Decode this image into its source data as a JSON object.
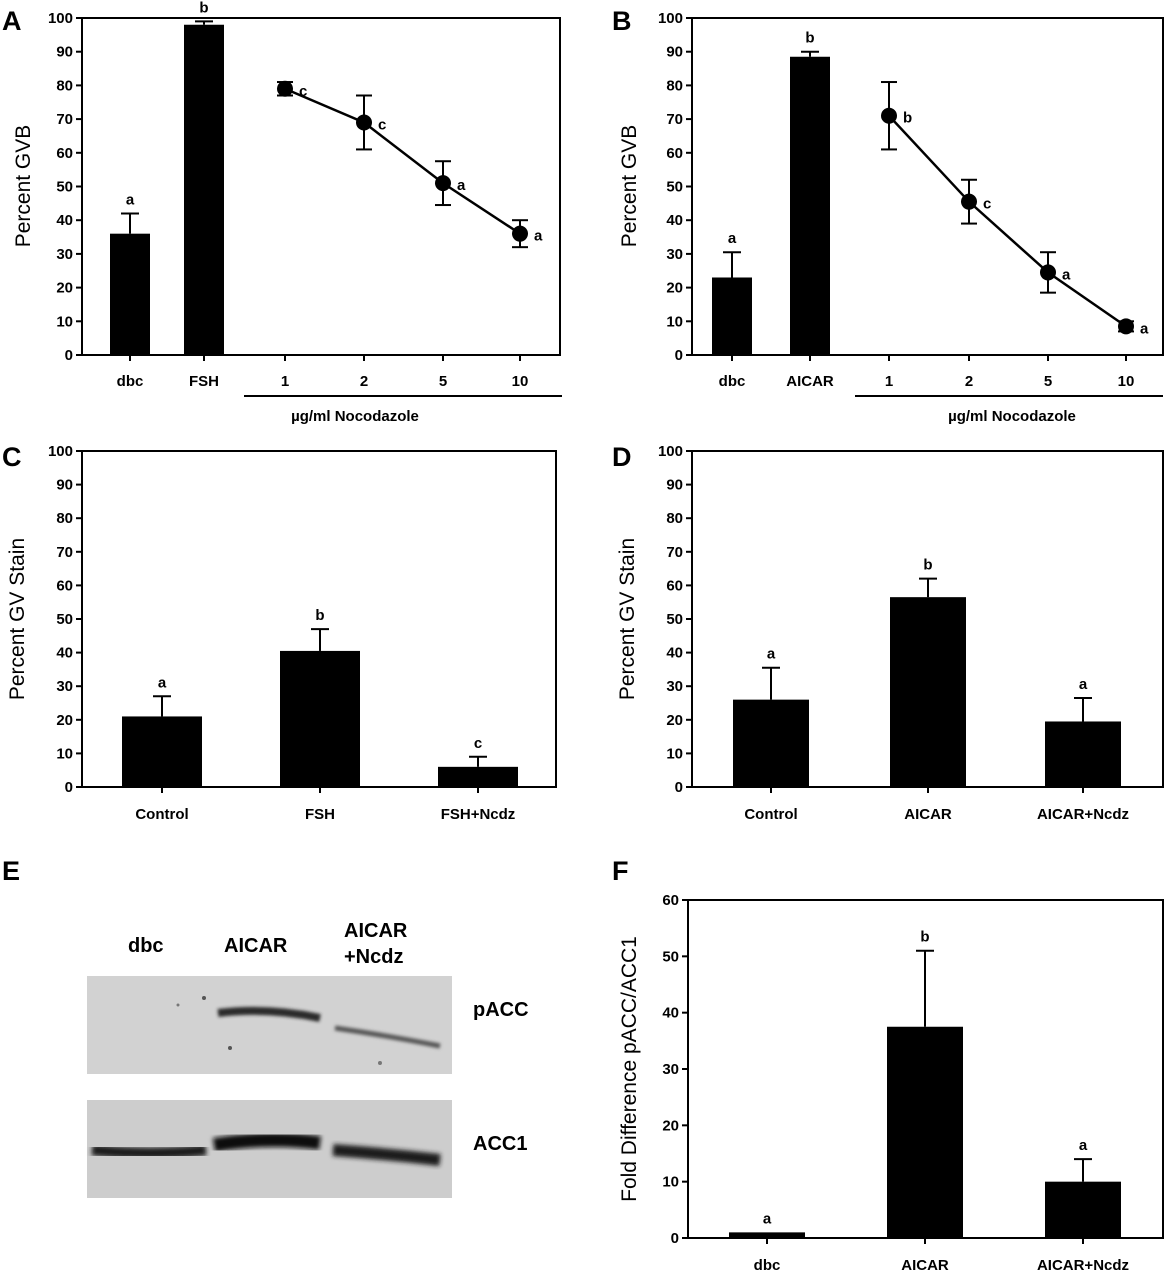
{
  "figure": {
    "panel_labels": [
      "A",
      "B",
      "C",
      "D",
      "E",
      "F"
    ]
  },
  "chart_data": [
    {
      "id": "A",
      "type": "bar",
      "ylabel": "Percent GVB",
      "ylim": [
        0,
        100
      ],
      "yticks": [
        0,
        10,
        20,
        30,
        40,
        50,
        60,
        70,
        80,
        90,
        100
      ],
      "categories": [
        "dbc",
        "FSH",
        "1",
        "2",
        "5",
        "10"
      ],
      "group_label": "µg/ml Nocodazole",
      "bars": [
        {
          "label": "dbc",
          "value": 36,
          "err": 6,
          "sig": "a"
        },
        {
          "label": "FSH",
          "value": 98,
          "err": 1,
          "sig": "b"
        }
      ],
      "line": [
        {
          "label": "1",
          "value": 79,
          "err": 2,
          "sig": "c"
        },
        {
          "label": "2",
          "value": 69,
          "err": 8,
          "sig": "c"
        },
        {
          "label": "5",
          "value": 51,
          "err": 6.5,
          "sig": "a"
        },
        {
          "label": "10",
          "value": 36,
          "err": 4,
          "sig": "a"
        }
      ]
    },
    {
      "id": "B",
      "type": "bar",
      "ylabel": "Percent GVB",
      "ylim": [
        0,
        100
      ],
      "yticks": [
        0,
        10,
        20,
        30,
        40,
        50,
        60,
        70,
        80,
        90,
        100
      ],
      "categories": [
        "dbc",
        "AICAR",
        "1",
        "2",
        "5",
        "10"
      ],
      "group_label": "µg/ml Nocodazole",
      "bars": [
        {
          "label": "dbc",
          "value": 23,
          "err": 7.5,
          "sig": "a"
        },
        {
          "label": "AICAR",
          "value": 88.5,
          "err": 1.5,
          "sig": "b"
        }
      ],
      "line": [
        {
          "label": "1",
          "value": 71,
          "err": 10,
          "sig": "b"
        },
        {
          "label": "2",
          "value": 45.5,
          "err": 6.5,
          "sig": "c"
        },
        {
          "label": "5",
          "value": 24.5,
          "err": 6,
          "sig": "a"
        },
        {
          "label": "10",
          "value": 8.5,
          "err": 1.5,
          "sig": "a"
        }
      ]
    },
    {
      "id": "C",
      "type": "bar",
      "ylabel": "Percent GV Stain",
      "ylim": [
        0,
        100
      ],
      "yticks": [
        0,
        10,
        20,
        30,
        40,
        50,
        60,
        70,
        80,
        90,
        100
      ],
      "categories": [
        "Control",
        "FSH",
        "FSH+Ncdz"
      ],
      "bars": [
        {
          "label": "Control",
          "value": 21,
          "err": 6,
          "sig": "a"
        },
        {
          "label": "FSH",
          "value": 40.5,
          "err": 6.5,
          "sig": "b"
        },
        {
          "label": "FSH+Ncdz",
          "value": 6,
          "err": 3,
          "sig": "c"
        }
      ]
    },
    {
      "id": "D",
      "type": "bar",
      "ylabel": "Percent GV Stain",
      "ylim": [
        0,
        100
      ],
      "yticks": [
        0,
        10,
        20,
        30,
        40,
        50,
        60,
        70,
        80,
        90,
        100
      ],
      "categories": [
        "Control",
        "AICAR",
        "AICAR+Ncdz"
      ],
      "bars": [
        {
          "label": "Control",
          "value": 26,
          "err": 9.5,
          "sig": "a"
        },
        {
          "label": "AICAR",
          "value": 56.5,
          "err": 5.5,
          "sig": "b"
        },
        {
          "label": "AICAR+Ncdz",
          "value": 19.5,
          "err": 7,
          "sig": "a"
        }
      ]
    },
    {
      "id": "F",
      "type": "bar",
      "ylabel": "Fold Difference pACC/ACC1",
      "ylim": [
        0,
        60
      ],
      "yticks": [
        0,
        10,
        20,
        30,
        40,
        50,
        60
      ],
      "categories": [
        "dbc",
        "AICAR",
        "AICAR+Ncdz"
      ],
      "bars": [
        {
          "label": "dbc",
          "value": 1,
          "err": 0,
          "sig": "a"
        },
        {
          "label": "AICAR",
          "value": 37.5,
          "err": 13.5,
          "sig": "b"
        },
        {
          "label": "AICAR+Ncdz",
          "value": 10,
          "err": 4,
          "sig": "a"
        }
      ]
    }
  ],
  "blot": {
    "lanes": [
      "dbc",
      "AICAR",
      "AICAR",
      "+Ncdz"
    ],
    "rows": [
      "pACC",
      "ACC1"
    ]
  }
}
